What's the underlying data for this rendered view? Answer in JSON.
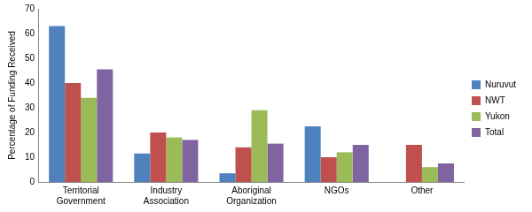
{
  "chart_data": {
    "type": "bar",
    "y_label": "Percentage of Funding Received",
    "categories": [
      "Territorial Government",
      "Industry Association",
      "Aboriginal Organization",
      "NGOs",
      "Other"
    ],
    "series": [
      {
        "name": "Nuruvut",
        "color": "#4f81bd",
        "values": [
          63,
          11.5,
          3.5,
          22.5,
          0
        ]
      },
      {
        "name": "NWT",
        "color": "#c0504d",
        "values": [
          40,
          20,
          14,
          10,
          15
        ]
      },
      {
        "name": "Yukon",
        "color": "#9bbb59",
        "values": [
          34,
          18,
          29,
          12,
          6
        ]
      },
      {
        "name": "Total",
        "color": "#8064a2",
        "values": [
          45.5,
          17,
          15.5,
          15,
          7.5
        ]
      }
    ],
    "ylim": [
      0,
      70
    ],
    "yticks": [
      0,
      10,
      20,
      30,
      40,
      50,
      60,
      70
    ],
    "grid": false,
    "legend": "right"
  }
}
